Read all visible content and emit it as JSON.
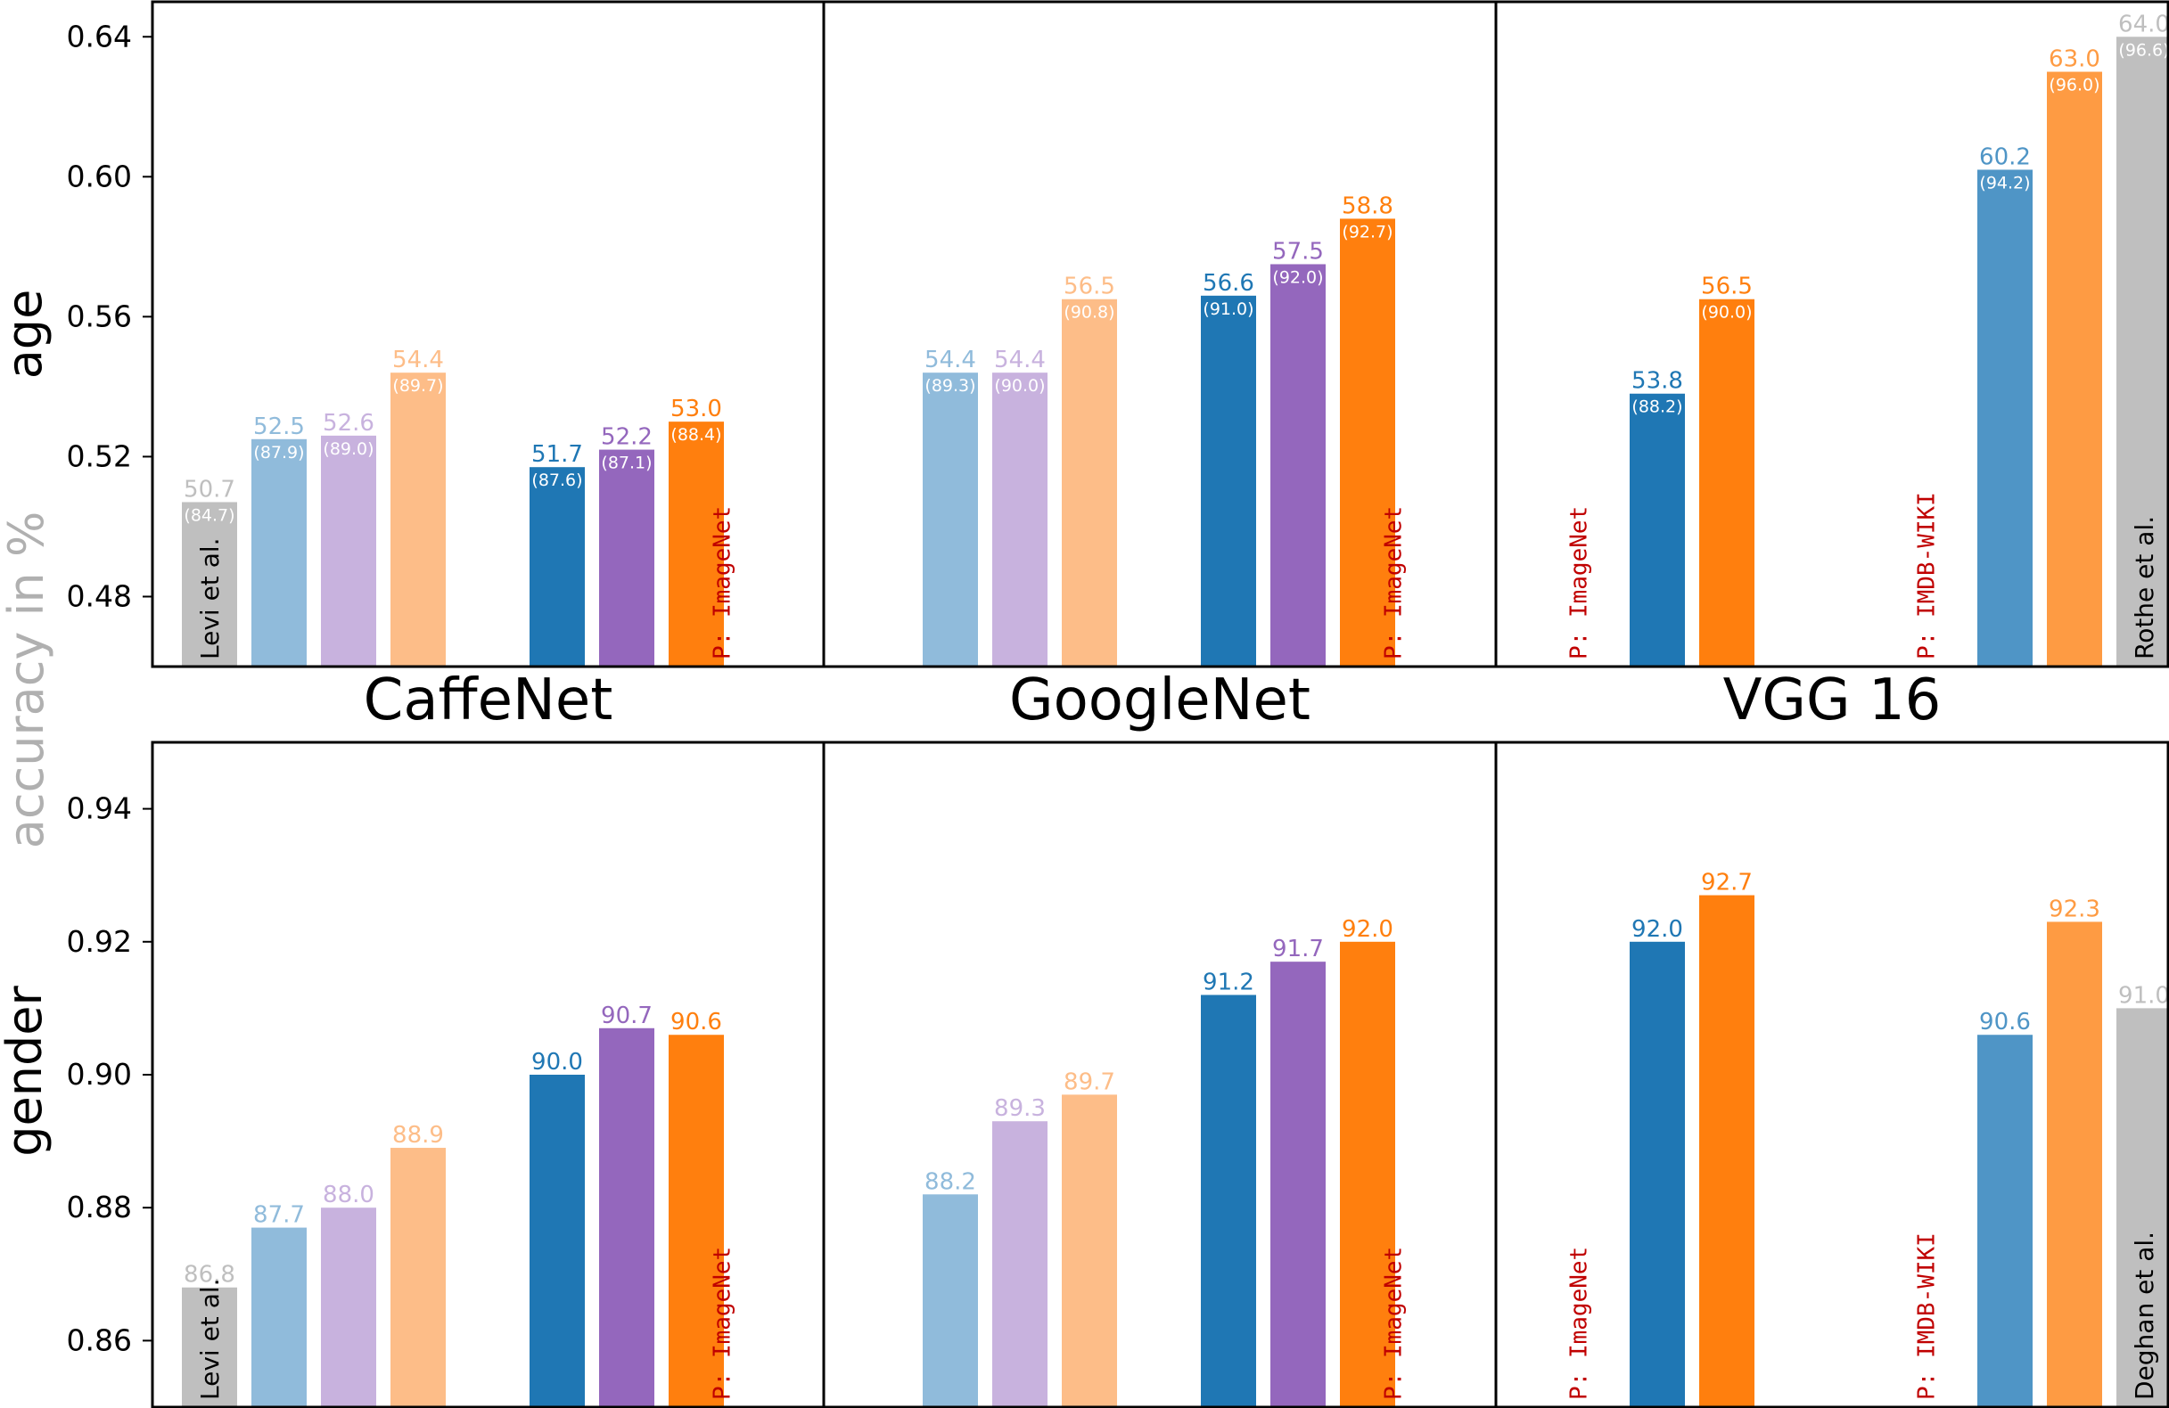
{
  "chart_data": {
    "type": "bar",
    "ylabel": "accuracy in %",
    "columns": [
      "CaffeNet",
      "GoogleNet",
      "VGG 16"
    ],
    "colors": {
      "gray": "#bfbfbf",
      "light_blue": "#90bbdb",
      "light_purple": "#c8b2de",
      "light_orange": "#fdbd88",
      "blue": "#1f77b4",
      "purple": "#9467bd",
      "orange": "#ff7f0e",
      "mid_blue": "#4f95c6",
      "mid_orange": "#fe9b43",
      "pretrain_text": "#c00000"
    },
    "rows": [
      {
        "name": "age",
        "ylim": [
          0.46,
          0.65
        ],
        "yticks": [
          0.48,
          0.52,
          0.56,
          0.6,
          0.64
        ],
        "ytick_labels": [
          "0.48",
          "0.52",
          "0.56",
          "0.60",
          "0.64"
        ],
        "panels": [
          {
            "column": "CaffeNet",
            "bars": [
              {
                "slot": 0,
                "value": 0.507,
                "label": "50.7",
                "sub": "(84.7)",
                "color": "gray",
                "ref": "Levi et al."
              },
              {
                "slot": 1,
                "value": 0.525,
                "label": "52.5",
                "sub": "(87.9)",
                "color": "light_blue"
              },
              {
                "slot": 2,
                "value": 0.526,
                "label": "52.6",
                "sub": "(89.0)",
                "color": "light_purple"
              },
              {
                "slot": 3,
                "value": 0.544,
                "label": "54.4",
                "sub": "(89.7)",
                "color": "light_orange"
              },
              {
                "slot": 5,
                "value": 0.517,
                "label": "51.7",
                "sub": "(87.6)",
                "color": "blue"
              },
              {
                "slot": 6,
                "value": 0.522,
                "label": "52.2",
                "sub": "(87.1)",
                "color": "purple"
              },
              {
                "slot": 7,
                "value": 0.53,
                "label": "53.0",
                "sub": "(88.4)",
                "color": "orange"
              }
            ],
            "pretrain": [
              {
                "slot": 7.75,
                "text": "P: ImageNet"
              }
            ]
          },
          {
            "column": "GoogleNet",
            "bars": [
              {
                "slot": 1,
                "value": 0.544,
                "label": "54.4",
                "sub": "(89.3)",
                "color": "light_blue"
              },
              {
                "slot": 2,
                "value": 0.544,
                "label": "54.4",
                "sub": "(90.0)",
                "color": "light_purple"
              },
              {
                "slot": 3,
                "value": 0.565,
                "label": "56.5",
                "sub": "(90.8)",
                "color": "light_orange"
              },
              {
                "slot": 5,
                "value": 0.566,
                "label": "56.6",
                "sub": "(91.0)",
                "color": "blue"
              },
              {
                "slot": 6,
                "value": 0.575,
                "label": "57.5",
                "sub": "(92.0)",
                "color": "purple"
              },
              {
                "slot": 7,
                "value": 0.588,
                "label": "58.8",
                "sub": "(92.7)",
                "color": "orange"
              }
            ],
            "pretrain": [
              {
                "slot": 7.75,
                "text": "P: ImageNet"
              }
            ]
          },
          {
            "column": "VGG 16",
            "bars": [
              {
                "slot": 1.5,
                "value": 0.538,
                "label": "53.8",
                "sub": "(88.2)",
                "color": "blue"
              },
              {
                "slot": 2.5,
                "value": 0.565,
                "label": "56.5",
                "sub": "(90.0)",
                "color": "orange"
              },
              {
                "slot": 6.5,
                "value": 0.602,
                "label": "60.2",
                "sub": "(94.2)",
                "color": "mid_blue"
              },
              {
                "slot": 7.5,
                "value": 0.63,
                "label": "63.0",
                "sub": "(96.0)",
                "color": "mid_orange"
              },
              {
                "slot": 8.5,
                "value": 0.64,
                "label": "64.0",
                "sub": "(96.6)",
                "color": "gray",
                "ref": "Rothe et al."
              }
            ],
            "pretrain": [
              {
                "slot": 0.75,
                "text": "P: ImageNet"
              },
              {
                "slot": 5.75,
                "text": "P: IMDB-WIKI"
              }
            ]
          }
        ]
      },
      {
        "name": "gender",
        "ylim": [
          0.85,
          0.95
        ],
        "yticks": [
          0.86,
          0.88,
          0.9,
          0.92,
          0.94
        ],
        "ytick_labels": [
          "0.86",
          "0.88",
          "0.90",
          "0.92",
          "0.94"
        ],
        "panels": [
          {
            "column": "CaffeNet",
            "bars": [
              {
                "slot": 0,
                "value": 0.868,
                "label": "86.8",
                "color": "gray",
                "ref": "Levi et al."
              },
              {
                "slot": 1,
                "value": 0.877,
                "label": "87.7",
                "color": "light_blue"
              },
              {
                "slot": 2,
                "value": 0.88,
                "label": "88.0",
                "color": "light_purple"
              },
              {
                "slot": 3,
                "value": 0.889,
                "label": "88.9",
                "color": "light_orange"
              },
              {
                "slot": 5,
                "value": 0.9,
                "label": "90.0",
                "color": "blue"
              },
              {
                "slot": 6,
                "value": 0.907,
                "label": "90.7",
                "color": "purple"
              },
              {
                "slot": 7,
                "value": 0.906,
                "label": "90.6",
                "color": "orange"
              }
            ],
            "pretrain": [
              {
                "slot": 7.75,
                "text": "P: ImageNet"
              }
            ]
          },
          {
            "column": "GoogleNet",
            "bars": [
              {
                "slot": 1,
                "value": 0.882,
                "label": "88.2",
                "color": "light_blue"
              },
              {
                "slot": 2,
                "value": 0.893,
                "label": "89.3",
                "color": "light_purple"
              },
              {
                "slot": 3,
                "value": 0.897,
                "label": "89.7",
                "color": "light_orange"
              },
              {
                "slot": 5,
                "value": 0.912,
                "label": "91.2",
                "color": "blue"
              },
              {
                "slot": 6,
                "value": 0.917,
                "label": "91.7",
                "color": "purple"
              },
              {
                "slot": 7,
                "value": 0.92,
                "label": "92.0",
                "color": "orange"
              }
            ],
            "pretrain": [
              {
                "slot": 7.75,
                "text": "P: ImageNet"
              }
            ]
          },
          {
            "column": "VGG 16",
            "bars": [
              {
                "slot": 1.5,
                "value": 0.92,
                "label": "92.0",
                "color": "blue"
              },
              {
                "slot": 2.5,
                "value": 0.927,
                "label": "92.7",
                "color": "orange"
              },
              {
                "slot": 6.5,
                "value": 0.906,
                "label": "90.6",
                "color": "mid_blue"
              },
              {
                "slot": 7.5,
                "value": 0.923,
                "label": "92.3",
                "color": "mid_orange"
              },
              {
                "slot": 8.5,
                "value": 0.91,
                "label": "91.0",
                "color": "gray",
                "ref": "Deghan et al."
              }
            ],
            "pretrain": [
              {
                "slot": 0.75,
                "text": "P: ImageNet"
              },
              {
                "slot": 5.75,
                "text": "P: IMDB-WIKI"
              }
            ]
          }
        ]
      }
    ]
  }
}
